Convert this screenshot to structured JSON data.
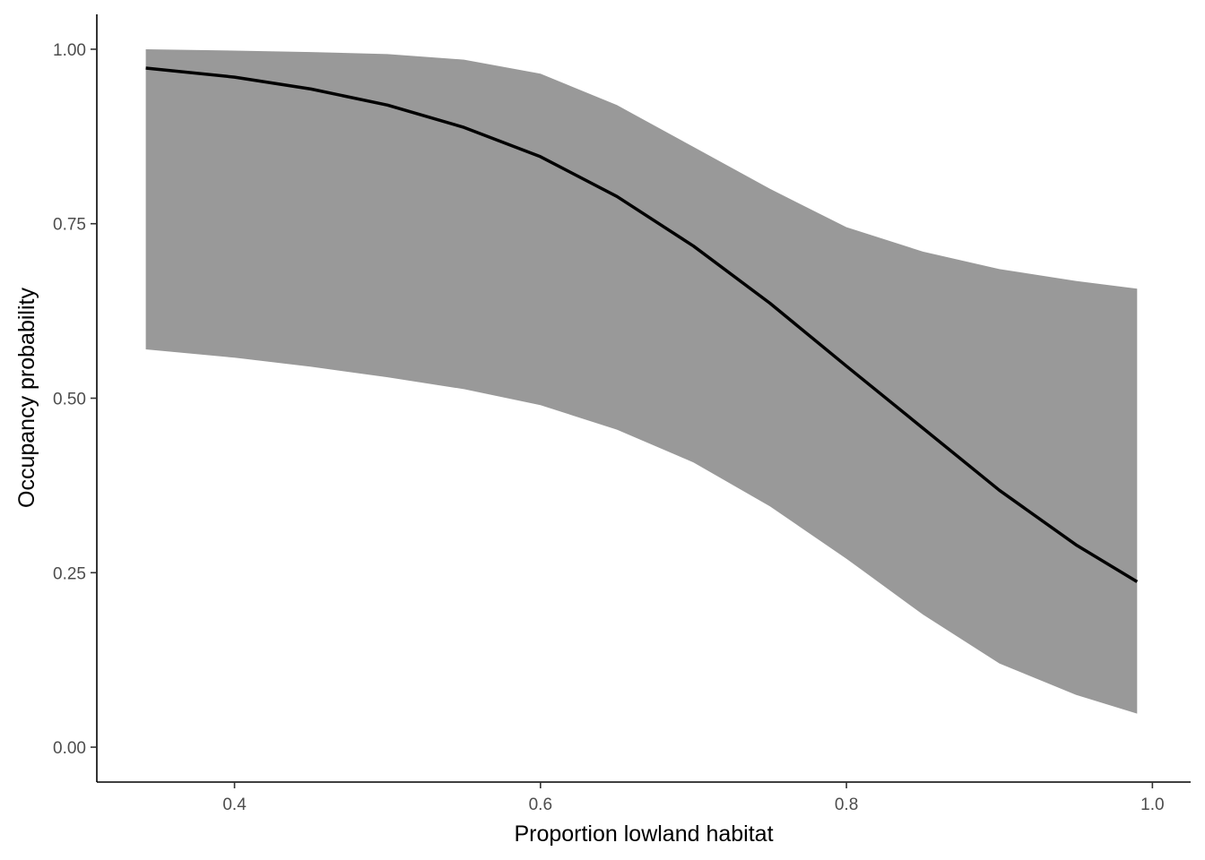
{
  "chart_data": {
    "type": "line",
    "title": "",
    "xlabel": "Proportion lowland habitat",
    "ylabel": "Occupancy probability",
    "xlim": [
      0.31,
      1.025
    ],
    "ylim": [
      -0.05,
      1.05
    ],
    "x_ticks": [
      0.4,
      0.6,
      0.8,
      1.0
    ],
    "x_tick_labels": [
      "0.4",
      "0.6",
      "0.8",
      "1.0"
    ],
    "y_ticks": [
      0.0,
      0.25,
      0.5,
      0.75,
      1.0
    ],
    "y_tick_labels": [
      "0.00",
      "0.25",
      "0.50",
      "0.75",
      "1.00"
    ],
    "grid": false,
    "legend": "none",
    "colors": {
      "line": "#000000",
      "ribbon": "#999999",
      "axis": "#000000",
      "tick_text": "#4d4d4d"
    },
    "x": [
      0.342,
      0.4,
      0.45,
      0.5,
      0.55,
      0.6,
      0.65,
      0.7,
      0.75,
      0.8,
      0.85,
      0.9,
      0.95,
      0.99
    ],
    "series": [
      {
        "values": [
          0.973,
          0.96,
          0.943,
          0.92,
          0.888,
          0.846,
          0.789,
          0.718,
          0.636,
          0.546,
          0.457,
          0.368,
          0.29,
          0.237
        ]
      }
    ],
    "ribbon": {
      "lower": [
        0.57,
        0.558,
        0.545,
        0.53,
        0.513,
        0.49,
        0.455,
        0.408,
        0.345,
        0.27,
        0.19,
        0.12,
        0.075,
        0.048
      ],
      "upper": [
        1.0,
        0.998,
        0.996,
        0.993,
        0.985,
        0.965,
        0.92,
        0.86,
        0.8,
        0.745,
        0.71,
        0.685,
        0.668,
        0.657
      ]
    }
  }
}
